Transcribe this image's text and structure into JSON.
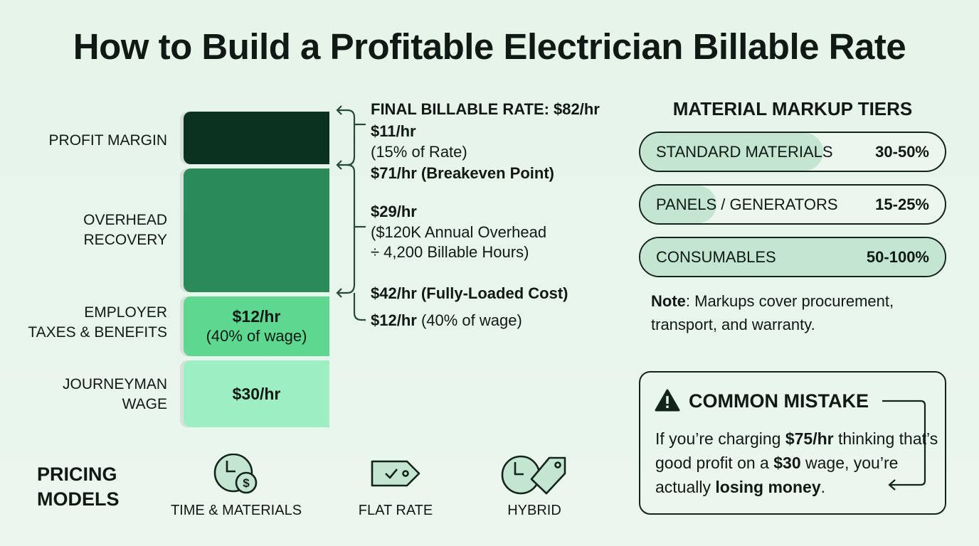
{
  "title": "How to Build a Profitable Electrician Billable Rate",
  "stack": {
    "layers": [
      {
        "label": "PROFIT MARGIN",
        "value": "",
        "note": "",
        "color": "#0b3220"
      },
      {
        "label_line1": "OVERHEAD",
        "label_line2": "RECOVERY",
        "color": "#2b8a5a"
      },
      {
        "label_line1": "EMPLOYER",
        "label_line2": "TAXES & BENEFITS",
        "value": "$12/hr",
        "note": "(40% of wage)",
        "color": "#5ed891"
      },
      {
        "label_line1": "JOURNEYMAN",
        "label_line2": "WAGE",
        "value": "$30/hr",
        "color": "#9deec2"
      }
    ]
  },
  "annotations": {
    "final": "FINAL BILLABLE RATE: $82/hr",
    "profit_value": "$11/hr",
    "profit_note": "(15% of Rate)",
    "breakeven": "$71/hr (Breakeven Point)",
    "overhead_value": "$29/hr",
    "overhead_note1": "($120K Annual Overhead",
    "overhead_note2": "÷ 4,200 Billable Hours)",
    "fully_loaded": "$42/hr (Fully-Loaded Cost)",
    "taxes_value": "$12/hr",
    "taxes_note": "(40% of wage)"
  },
  "markup": {
    "heading": "MATERIAL MARKUP TIERS",
    "tiers": [
      {
        "name": "STANDARD MATERIALS",
        "range": "30-50%",
        "fill": 0.6
      },
      {
        "name": "PANELS / GENERATORS",
        "range": "15-25%",
        "fill": 0.25
      },
      {
        "name": "CONSUMABLES",
        "range": "50-100%",
        "fill": 1.0
      }
    ],
    "note_bold": "Note",
    "note_text": ": Markups cover procurement, transport, and warranty."
  },
  "mistake": {
    "title": "COMMON MISTAKE",
    "t1": "If you’re charging ",
    "b1": "$75/hr",
    "t2": " thinking that’s good profit on a ",
    "b2": "$30",
    "t3": " wage, you’re actually ",
    "b3": "losing money",
    "t4": "."
  },
  "pricing": {
    "heading_line1": "PRICING",
    "heading_line2": "MODELS",
    "models": [
      {
        "label": "TIME & MATERIALS",
        "icon": "clock-dollar-icon"
      },
      {
        "label": "FLAT RATE",
        "icon": "price-tag-check-icon"
      },
      {
        "label": "HYBRID",
        "icon": "clock-tag-icon"
      }
    ]
  }
}
